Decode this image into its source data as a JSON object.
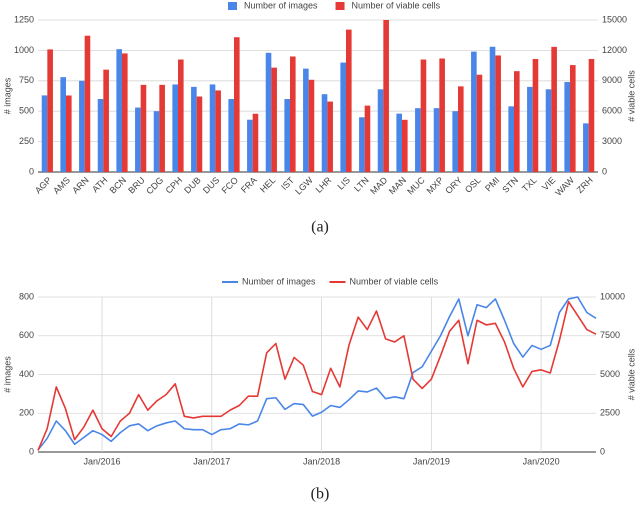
{
  "chart_data": [
    {
      "type": "bar",
      "caption": "(a)",
      "ylabel": "# images",
      "y2label": "# viable cells",
      "categories": [
        "AGP",
        "AMS",
        "ARN",
        "ATH",
        "BCN",
        "BRU",
        "CDG",
        "CPH",
        "DUB",
        "DUS",
        "FCO",
        "FRA",
        "HEL",
        "IST",
        "LGW",
        "LHR",
        "LIS",
        "LTN",
        "MAD",
        "MAN",
        "MUC",
        "MXP",
        "ORY",
        "OSL",
        "PMI",
        "STN",
        "TXL",
        "VIE",
        "WAW",
        "ZRH"
      ],
      "series": [
        {
          "name": "Number of images",
          "color": "#4a86e8",
          "values": [
            630,
            780,
            750,
            600,
            1010,
            530,
            500,
            720,
            700,
            720,
            600,
            430,
            980,
            600,
            850,
            640,
            900,
            450,
            680,
            480,
            525,
            525,
            500,
            990,
            1030,
            540,
            700,
            680,
            740,
            400
          ]
        },
        {
          "name": "Number of viable cells",
          "color": "#e53935",
          "axis": "y2",
          "values": [
            12100,
            7550,
            13450,
            10100,
            11700,
            8600,
            8600,
            11100,
            7450,
            8050,
            13300,
            5750,
            10300,
            11400,
            9100,
            6950,
            14050,
            6550,
            15000,
            5150,
            11100,
            11200,
            8450,
            9600,
            11500,
            9950,
            11150,
            12350,
            10550,
            11150
          ]
        }
      ],
      "ylim": [
        0,
        1250
      ],
      "yticks": [
        0,
        250,
        500,
        750,
        1000,
        1250
      ],
      "y2lim": [
        0,
        15000
      ],
      "y2ticks": [
        0,
        3000,
        6000,
        9000,
        12000,
        15000
      ],
      "grid": true,
      "legend": "top"
    },
    {
      "type": "line",
      "caption": "(b)",
      "ylabel": "# images",
      "y2label": "# viable cells",
      "x": [
        "2015-06",
        "2015-07",
        "2015-08",
        "2015-09",
        "2015-10",
        "2015-11",
        "2015-12",
        "2016-01",
        "2016-02",
        "2016-03",
        "2016-04",
        "2016-05",
        "2016-06",
        "2016-07",
        "2016-08",
        "2016-09",
        "2016-10",
        "2016-11",
        "2016-12",
        "2017-01",
        "2017-02",
        "2017-03",
        "2017-04",
        "2017-05",
        "2017-06",
        "2017-07",
        "2017-08",
        "2017-09",
        "2017-10",
        "2017-11",
        "2017-12",
        "2018-01",
        "2018-02",
        "2018-03",
        "2018-04",
        "2018-05",
        "2018-06",
        "2018-07",
        "2018-08",
        "2018-09",
        "2018-10",
        "2018-11",
        "2018-12",
        "2019-01",
        "2019-02",
        "2019-03",
        "2019-04",
        "2019-05",
        "2019-06",
        "2019-07",
        "2019-08",
        "2019-09",
        "2019-10",
        "2019-11",
        "2019-12",
        "2020-01",
        "2020-02",
        "2020-03",
        "2020-04",
        "2020-05",
        "2020-06",
        "2020-07"
      ],
      "series": [
        {
          "name": "Number of images",
          "color": "#4a86e8",
          "values": [
            10,
            70,
            160,
            110,
            40,
            75,
            110,
            90,
            55,
            100,
            135,
            145,
            110,
            135,
            150,
            160,
            120,
            115,
            115,
            90,
            115,
            120,
            145,
            140,
            160,
            275,
            280,
            220,
            250,
            245,
            185,
            205,
            240,
            230,
            270,
            315,
            310,
            330,
            275,
            285,
            275,
            410,
            440,
            520,
            600,
            700,
            790,
            600,
            760,
            745,
            790,
            680,
            560,
            490,
            550,
            530,
            550,
            720,
            790,
            800,
            720,
            690
          ]
        },
        {
          "name": "Number of viable cells",
          "color": "#e53935",
          "axis": "y2",
          "values": [
            100,
            1500,
            4200,
            2800,
            800,
            1600,
            2700,
            1500,
            1000,
            2000,
            2500,
            3700,
            2700,
            3300,
            3700,
            4400,
            2300,
            2200,
            2300,
            2300,
            2300,
            2700,
            3000,
            3600,
            3600,
            6400,
            7000,
            4700,
            6100,
            5600,
            3900,
            3700,
            5400,
            4200,
            6900,
            8700,
            7900,
            9100,
            7300,
            7100,
            7500,
            4700,
            4100,
            4700,
            6200,
            7800,
            8500,
            5700,
            8500,
            8200,
            8300,
            7100,
            5400,
            4200,
            5200,
            5300,
            5100,
            7200,
            9700,
            8800,
            7900,
            7600
          ]
        }
      ],
      "xlim": [
        "2015-06",
        "2020-07"
      ],
      "xticks": [
        {
          "value": "2016-01",
          "label": "Jan/2016"
        },
        {
          "value": "2017-01",
          "label": "Jan/2017"
        },
        {
          "value": "2018-01",
          "label": "Jan/2018"
        },
        {
          "value": "2019-01",
          "label": "Jan/2019"
        },
        {
          "value": "2020-01",
          "label": "Jan/2020"
        }
      ],
      "ylim": [
        0,
        800
      ],
      "yticks": [
        0,
        200,
        400,
        600,
        800
      ],
      "y2lim": [
        0,
        10000
      ],
      "y2ticks": [
        0,
        2500,
        5000,
        7500,
        10000
      ],
      "grid": true,
      "xgrid": true,
      "legend": "top"
    }
  ]
}
